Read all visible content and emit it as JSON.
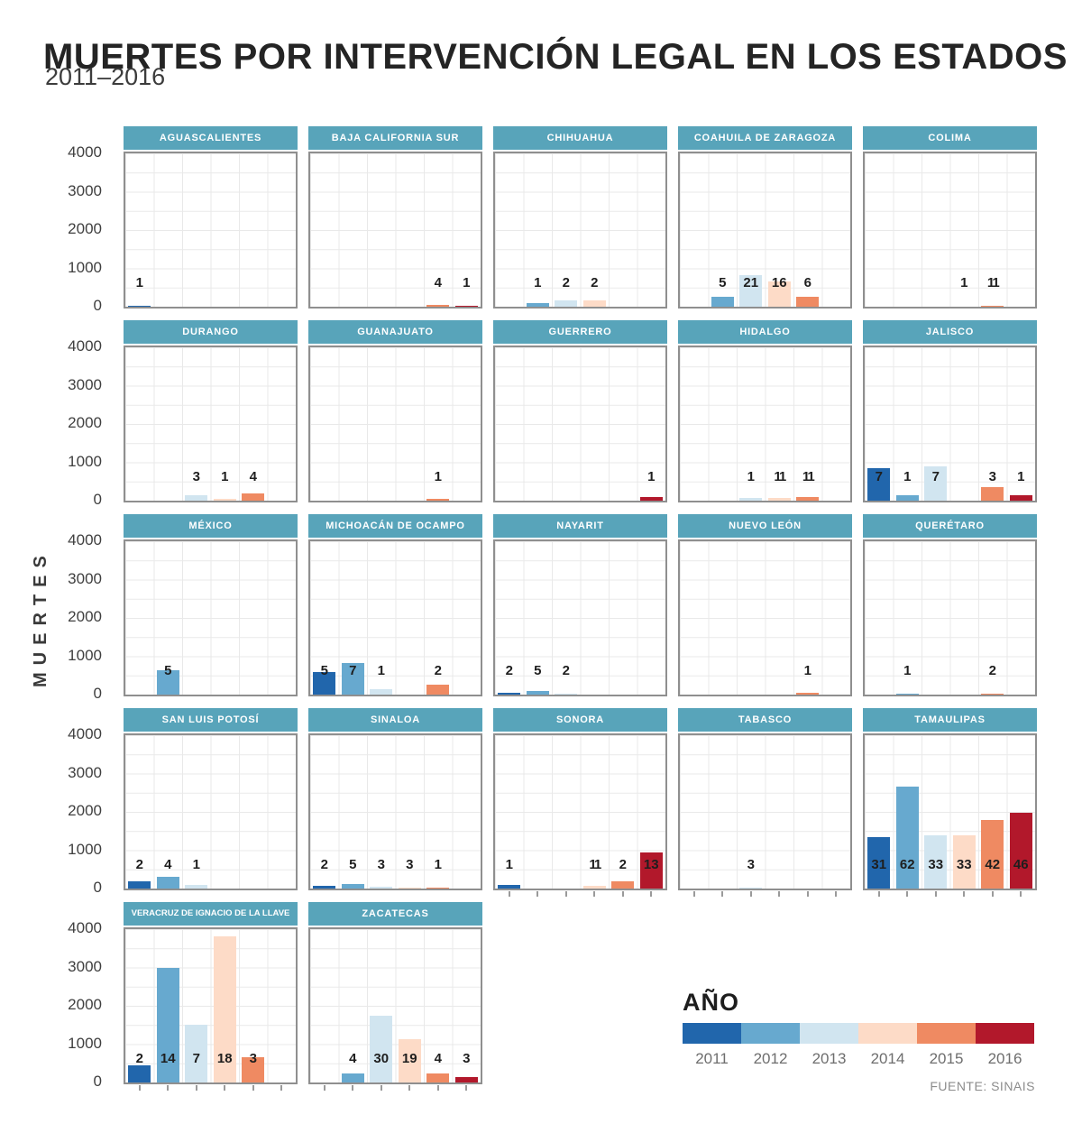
{
  "title": "MUERTES POR INTERVENCIÓN LEGAL EN LOS ESTADOS",
  "subtitle": "2011–2016",
  "source": "FUENTE: SINAIS",
  "y_axis": {
    "label": "MUERTES",
    "ticks": [
      "4000",
      "3000",
      "2000",
      "1000",
      "0"
    ],
    "max": 4000
  },
  "legend": {
    "title": "AÑO",
    "years": [
      {
        "label": "2011",
        "color": "#2166ac"
      },
      {
        "label": "2012",
        "color": "#67a9cf"
      },
      {
        "label": "2013",
        "color": "#d1e5f0"
      },
      {
        "label": "2014",
        "color": "#fddbc7"
      },
      {
        "label": "2015",
        "color": "#ef8a62"
      },
      {
        "label": "2016",
        "color": "#b2182b"
      }
    ]
  },
  "chart_data": {
    "type": "bar",
    "title": "MUERTES POR INTERVENCIÓN LEGAL EN LOS ESTADOS 2011–2016",
    "ylabel": "MUERTES",
    "ylim": [
      0,
      4000
    ],
    "grid": true,
    "legend_position": "bottom-right",
    "categories": [
      "2011",
      "2012",
      "2013",
      "2014",
      "2015",
      "2016"
    ],
    "note": "value = printed data label; plotted = bar height as drawn, in y-axis units (0-4000)",
    "facets": [
      {
        "state": "AGUASCALIENTES",
        "row": 1,
        "col": 1,
        "axis_ticks": false,
        "bars": [
          {
            "year": "2011",
            "value": "1",
            "plotted": 35
          }
        ]
      },
      {
        "state": "BAJA CALIFORNIA SUR",
        "row": 1,
        "col": 2,
        "axis_ticks": false,
        "bars": [
          {
            "year": "2015",
            "value": "4",
            "plotted": 45
          },
          {
            "year": "2016",
            "value": "1",
            "plotted": 25
          }
        ]
      },
      {
        "state": "CHIHUAHUA",
        "row": 1,
        "col": 3,
        "axis_ticks": false,
        "bars": [
          {
            "year": "2012",
            "value": "1",
            "plotted": 90
          },
          {
            "year": "2013",
            "value": "2",
            "plotted": 175
          },
          {
            "year": "2014",
            "value": "2",
            "plotted": 160
          }
        ]
      },
      {
        "state": "COAHUILA DE ZARAGOZA",
        "row": 1,
        "col": 4,
        "axis_ticks": false,
        "bars": [
          {
            "year": "2012",
            "value": "5",
            "plotted": 250
          },
          {
            "year": "2013",
            "value": "21",
            "plotted": 820
          },
          {
            "year": "2014",
            "value": "16",
            "plotted": 660
          },
          {
            "year": "2015",
            "value": "6",
            "plotted": 270
          }
        ]
      },
      {
        "state": "COLIMA",
        "row": 1,
        "col": 5,
        "axis_ticks": false,
        "bars": [
          {
            "year": "2014",
            "value": "1",
            "plotted": 0
          },
          {
            "year": "2015",
            "value": "11",
            "plotted": 30
          }
        ]
      },
      {
        "state": "DURANGO",
        "row": 2,
        "col": 1,
        "axis_ticks": false,
        "bars": [
          {
            "year": "2013",
            "value": "3",
            "plotted": 130
          },
          {
            "year": "2014",
            "value": "1",
            "plotted": 45
          },
          {
            "year": "2015",
            "value": "4",
            "plotted": 180
          }
        ]
      },
      {
        "state": "GUANAJUATO",
        "row": 2,
        "col": 2,
        "axis_ticks": false,
        "bars": [
          {
            "year": "2015",
            "value": "1",
            "plotted": 40
          }
        ]
      },
      {
        "state": "GUERRERO",
        "row": 2,
        "col": 3,
        "axis_ticks": false,
        "bars": [
          {
            "year": "2016",
            "value": "1",
            "plotted": 90
          }
        ]
      },
      {
        "state": "HIDALGO",
        "row": 2,
        "col": 4,
        "axis_ticks": false,
        "bars": [
          {
            "year": "2013",
            "value": "1",
            "plotted": 70
          },
          {
            "year": "2014",
            "value": "11",
            "plotted": 60
          },
          {
            "year": "2015",
            "value": "11",
            "plotted": 95
          }
        ]
      },
      {
        "state": "JALISCO",
        "row": 2,
        "col": 5,
        "axis_ticks": false,
        "bars": [
          {
            "year": "2011",
            "value": "7",
            "plotted": 840
          },
          {
            "year": "2012",
            "value": "1",
            "plotted": 140
          },
          {
            "year": "2013",
            "value": "7",
            "plotted": 890
          },
          {
            "year": "2015",
            "value": "3",
            "plotted": 360
          },
          {
            "year": "2016",
            "value": "1",
            "plotted": 140
          }
        ]
      },
      {
        "state": "MÉXICO",
        "row": 3,
        "col": 1,
        "axis_ticks": false,
        "bars": [
          {
            "year": "2012",
            "value": "5",
            "plotted": 630
          }
        ]
      },
      {
        "state": "MICHOACÁN DE OCAMPO",
        "row": 3,
        "col": 2,
        "axis_ticks": false,
        "bars": [
          {
            "year": "2011",
            "value": "5",
            "plotted": 590
          },
          {
            "year": "2012",
            "value": "7",
            "plotted": 820
          },
          {
            "year": "2013",
            "value": "1",
            "plotted": 140
          },
          {
            "year": "2015",
            "value": "2",
            "plotted": 250
          }
        ]
      },
      {
        "state": "NAYARIT",
        "row": 3,
        "col": 3,
        "axis_ticks": false,
        "bars": [
          {
            "year": "2011",
            "value": "2",
            "plotted": 45
          },
          {
            "year": "2012",
            "value": "5",
            "plotted": 95
          },
          {
            "year": "2013",
            "value": "2",
            "plotted": 30
          }
        ]
      },
      {
        "state": "NUEVO LEÓN",
        "row": 3,
        "col": 4,
        "axis_ticks": false,
        "bars": [
          {
            "year": "2015",
            "value": "1",
            "plotted": 45
          }
        ]
      },
      {
        "state": "QUERÉTARO",
        "row": 3,
        "col": 5,
        "axis_ticks": false,
        "bars": [
          {
            "year": "2012",
            "value": "1",
            "plotted": 25
          },
          {
            "year": "2015",
            "value": "2",
            "plotted": 30
          }
        ]
      },
      {
        "state": "SAN LUIS POTOSÍ",
        "row": 4,
        "col": 1,
        "axis_ticks": false,
        "bars": [
          {
            "year": "2011",
            "value": "2",
            "plotted": 180
          },
          {
            "year": "2012",
            "value": "4",
            "plotted": 300
          },
          {
            "year": "2013",
            "value": "1",
            "plotted": 90
          }
        ]
      },
      {
        "state": "SINALOA",
        "row": 4,
        "col": 2,
        "axis_ticks": false,
        "bars": [
          {
            "year": "2011",
            "value": "2",
            "plotted": 70
          },
          {
            "year": "2012",
            "value": "5",
            "plotted": 120
          },
          {
            "year": "2013",
            "value": "3",
            "plotted": 55
          },
          {
            "year": "2014",
            "value": "3",
            "plotted": 35
          },
          {
            "year": "2015",
            "value": "1",
            "plotted": 25
          }
        ]
      },
      {
        "state": "SONORA",
        "row": 4,
        "col": 3,
        "axis_ticks": true,
        "bars": [
          {
            "year": "2011",
            "value": "1",
            "plotted": 90
          },
          {
            "year": "2014",
            "value": "11",
            "plotted": 70
          },
          {
            "year": "2015",
            "value": "2",
            "plotted": 200
          },
          {
            "year": "2016",
            "value": "13",
            "plotted": 950
          }
        ]
      },
      {
        "state": "TABASCO",
        "row": 4,
        "col": 4,
        "axis_ticks": true,
        "bars": [
          {
            "year": "2013",
            "value": "3",
            "plotted": 30
          }
        ]
      },
      {
        "state": "TAMAULIPAS",
        "row": 4,
        "col": 5,
        "axis_ticks": true,
        "bars": [
          {
            "year": "2011",
            "value": "31",
            "plotted": 1340
          },
          {
            "year": "2012",
            "value": "62",
            "plotted": 2650
          },
          {
            "year": "2013",
            "value": "33",
            "plotted": 1400
          },
          {
            "year": "2014",
            "value": "33",
            "plotted": 1400
          },
          {
            "year": "2015",
            "value": "42",
            "plotted": 1800
          },
          {
            "year": "2016",
            "value": "46",
            "plotted": 1980
          }
        ]
      },
      {
        "state": "VERACRUZ DE IGNACIO DE LA LLAVE",
        "row": 5,
        "col": 1,
        "axis_ticks": true,
        "bars": [
          {
            "year": "2011",
            "value": "2",
            "plotted": 440
          },
          {
            "year": "2012",
            "value": "14",
            "plotted": 2980
          },
          {
            "year": "2013",
            "value": "7",
            "plotted": 1500
          },
          {
            "year": "2014",
            "value": "18",
            "plotted": 3820
          },
          {
            "year": "2015",
            "value": "3",
            "plotted": 650
          }
        ]
      },
      {
        "state": "ZACATECAS",
        "row": 5,
        "col": 2,
        "axis_ticks": true,
        "bars": [
          {
            "year": "2012",
            "value": "4",
            "plotted": 240
          },
          {
            "year": "2013",
            "value": "30",
            "plotted": 1750
          },
          {
            "year": "2014",
            "value": "19",
            "plotted": 1120
          },
          {
            "year": "2015",
            "value": "4",
            "plotted": 230
          },
          {
            "year": "2016",
            "value": "3",
            "plotted": 150
          }
        ]
      }
    ],
    "header_color": "#58a4ba"
  }
}
